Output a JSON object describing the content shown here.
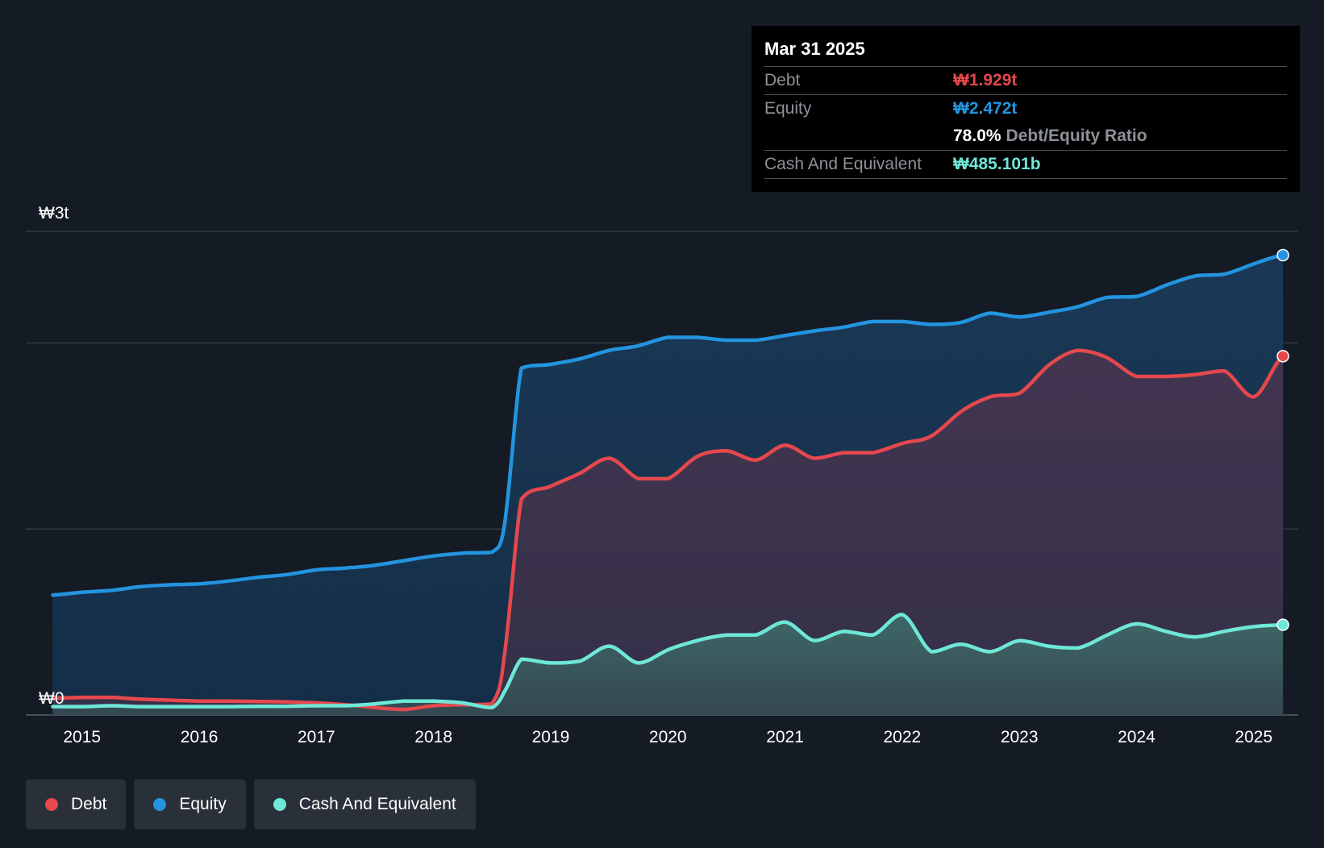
{
  "tooltip": {
    "date": "Mar 31 2025",
    "debt_label": "Debt",
    "debt_value": "₩1.929t",
    "equity_label": "Equity",
    "equity_value": "₩2.472t",
    "ratio_value": "78.0%",
    "ratio_label": "Debt/Equity Ratio",
    "cash_label": "Cash And Equivalent",
    "cash_value": "₩485.101b"
  },
  "legend": [
    {
      "label": "Debt",
      "color": "#e5484d"
    },
    {
      "label": "Equity",
      "color": "#2394df"
    },
    {
      "label": "Cash And Equivalent",
      "color": "#6ee7d6"
    }
  ],
  "colors": {
    "debt": "#e5484d",
    "equity": "#2394df",
    "cash": "#6ee7d6"
  },
  "chart_data": {
    "type": "area",
    "title": "",
    "xlabel": "",
    "ylabel": "",
    "xlim": [
      2014.52,
      2025.38
    ],
    "ylim": [
      0,
      2.6
    ],
    "y_tick_labels": [
      {
        "value": 2.6,
        "label": "₩3t"
      },
      {
        "value": 0,
        "label": "₩0"
      }
    ],
    "gridlines": [
      0,
      1.0,
      2.0,
      2.6
    ],
    "x_ticks": [
      2015,
      2016,
      2017,
      2018,
      2019,
      2020,
      2021,
      2022,
      2023,
      2024,
      2025
    ],
    "x_tick_labels": [
      "2015",
      "2016",
      "2017",
      "2018",
      "2019",
      "2020",
      "2021",
      "2022",
      "2023",
      "2024",
      "2025"
    ],
    "series": [
      {
        "name": "Equity",
        "key": "equity",
        "x": [
          2014.75,
          2015.0,
          2015.25,
          2015.5,
          2015.75,
          2016.0,
          2016.25,
          2016.5,
          2016.75,
          2017.0,
          2017.25,
          2017.5,
          2017.75,
          2018.0,
          2018.25,
          2018.5,
          2018.6,
          2018.75,
          2019.0,
          2019.25,
          2019.5,
          2019.75,
          2020.0,
          2020.25,
          2020.5,
          2020.75,
          2021.0,
          2021.25,
          2021.5,
          2021.75,
          2022.0,
          2022.25,
          2022.5,
          2022.75,
          2023.0,
          2023.25,
          2023.5,
          2023.75,
          2024.0,
          2024.25,
          2024.5,
          2024.75,
          2025.0,
          2025.25
        ],
        "values": [
          0.645,
          0.66,
          0.67,
          0.69,
          0.7,
          0.705,
          0.72,
          0.74,
          0.755,
          0.78,
          0.79,
          0.805,
          0.83,
          0.855,
          0.87,
          0.875,
          1.0,
          1.865,
          1.885,
          1.915,
          1.96,
          1.985,
          2.03,
          2.03,
          2.015,
          2.015,
          2.04,
          2.065,
          2.085,
          2.115,
          2.115,
          2.1,
          2.11,
          2.16,
          2.14,
          2.165,
          2.195,
          2.245,
          2.25,
          2.31,
          2.36,
          2.37,
          2.425,
          2.472
        ]
      },
      {
        "name": "Debt",
        "key": "debt",
        "x": [
          2014.75,
          2015.0,
          2015.25,
          2015.5,
          2015.75,
          2016.0,
          2016.25,
          2016.5,
          2016.75,
          2017.0,
          2017.25,
          2017.5,
          2017.75,
          2018.0,
          2018.25,
          2018.5,
          2018.6,
          2018.75,
          2019.0,
          2019.25,
          2019.5,
          2019.75,
          2020.0,
          2020.25,
          2020.5,
          2020.75,
          2021.0,
          2021.25,
          2021.5,
          2021.75,
          2022.0,
          2022.25,
          2022.5,
          2022.75,
          2023.0,
          2023.25,
          2023.5,
          2023.75,
          2024.0,
          2024.25,
          2024.5,
          2024.75,
          2025.0,
          2025.25
        ],
        "values": [
          0.09,
          0.095,
          0.095,
          0.085,
          0.08,
          0.075,
          0.075,
          0.073,
          0.07,
          0.065,
          0.055,
          0.04,
          0.03,
          0.05,
          0.055,
          0.06,
          0.3,
          1.16,
          1.23,
          1.3,
          1.38,
          1.27,
          1.27,
          1.39,
          1.42,
          1.37,
          1.45,
          1.38,
          1.41,
          1.41,
          1.46,
          1.5,
          1.63,
          1.71,
          1.73,
          1.88,
          1.96,
          1.92,
          1.82,
          1.82,
          1.83,
          1.85,
          1.71,
          1.929
        ]
      },
      {
        "name": "Cash And Equivalent",
        "key": "cash",
        "x": [
          2014.75,
          2015.0,
          2015.25,
          2015.5,
          2015.75,
          2016.0,
          2016.25,
          2016.5,
          2016.75,
          2017.0,
          2017.25,
          2017.5,
          2017.75,
          2018.0,
          2018.25,
          2018.5,
          2018.6,
          2018.75,
          2019.0,
          2019.25,
          2019.5,
          2019.75,
          2020.0,
          2020.25,
          2020.5,
          2020.75,
          2021.0,
          2021.25,
          2021.5,
          2021.75,
          2022.0,
          2022.25,
          2022.5,
          2022.75,
          2023.0,
          2023.25,
          2023.5,
          2023.75,
          2024.0,
          2024.25,
          2024.5,
          2024.75,
          2025.0,
          2025.25
        ],
        "values": [
          0.045,
          0.045,
          0.05,
          0.045,
          0.045,
          0.045,
          0.045,
          0.047,
          0.047,
          0.05,
          0.05,
          0.06,
          0.075,
          0.075,
          0.065,
          0.04,
          0.12,
          0.3,
          0.28,
          0.29,
          0.37,
          0.28,
          0.35,
          0.4,
          0.43,
          0.43,
          0.5,
          0.4,
          0.45,
          0.43,
          0.54,
          0.34,
          0.38,
          0.34,
          0.4,
          0.37,
          0.36,
          0.43,
          0.49,
          0.45,
          0.42,
          0.45,
          0.475,
          0.485
        ]
      }
    ]
  }
}
